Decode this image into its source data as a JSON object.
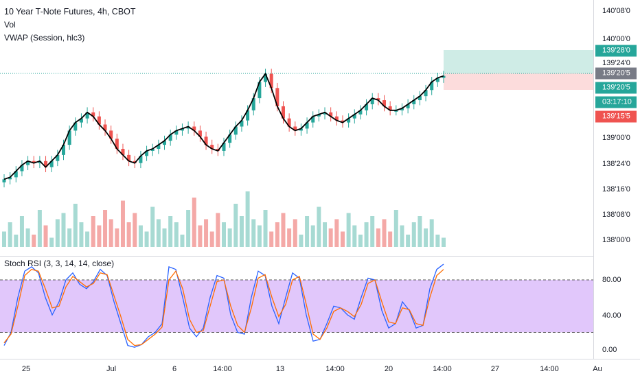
{
  "legend": {
    "title": "10 Year T-Note Futures, 4h, CBOT",
    "vol": "Vol",
    "vwap": "VWAP (Session, hlc3)",
    "stoch": "Stoch RSI (3, 3, 14, 14, close)"
  },
  "price_axis": {
    "ticks": [
      "140'08'0",
      "140'00'0",
      "139'24'0",
      "139'00'0",
      "138'24'0",
      "138'16'0",
      "138'08'0",
      "138'00'0"
    ],
    "badges": {
      "target": "139'28'0",
      "current": "139'20'5",
      "entry": "139'20'5",
      "countdown": "03:17:10",
      "stop": "139'15'5"
    }
  },
  "rsi_axis": {
    "ticks": [
      "80.00",
      "40.00",
      "0.00"
    ]
  },
  "time_axis": {
    "ticks": [
      "25",
      "Jul",
      "6",
      "14:00",
      "13",
      "14:00",
      "20",
      "14:00",
      "27",
      "14:00",
      "Au"
    ]
  },
  "colors": {
    "up": "#26a69a",
    "down": "#ef5350",
    "vwap": "#000000",
    "k_line": "#2962ff",
    "d_line": "#ff6d00",
    "rsi_band": "#e1c7fb",
    "target_zone": "#cfece6",
    "stop_zone": "#fcdcdc",
    "current_badge": "#787b86",
    "countdown_badge": "#26a69a"
  },
  "chart_data": [
    {
      "type": "candlestick",
      "title": "10 Year T-Note Futures, 4h, CBOT",
      "close": [
        138.62,
        138.64,
        138.7,
        138.76,
        138.8,
        138.78,
        138.8,
        138.74,
        138.8,
        138.86,
        138.96,
        139.1,
        139.18,
        139.22,
        139.28,
        139.24,
        139.16,
        139.1,
        139.02,
        138.92,
        138.86,
        138.8,
        138.78,
        138.85,
        138.9,
        138.92,
        138.96,
        139.0,
        139.06,
        139.1,
        139.12,
        139.14,
        139.1,
        139.04,
        138.96,
        138.92,
        138.9,
        138.98,
        139.06,
        139.14,
        139.2,
        139.3,
        139.42,
        139.58,
        139.66,
        139.52,
        139.34,
        139.22,
        139.14,
        139.1,
        139.12,
        139.18,
        139.24,
        139.26,
        139.28,
        139.24,
        139.2,
        139.18,
        139.22,
        139.26,
        139.3,
        139.36,
        139.42,
        139.4,
        139.34,
        139.3,
        139.3,
        139.32,
        139.36,
        139.4,
        139.44,
        139.5,
        139.58,
        139.62,
        139.64
      ],
      "ylim": [
        137.9,
        140.35
      ]
    },
    {
      "type": "bar",
      "title": "Vol",
      "values": [
        5,
        8,
        4,
        10,
        6,
        4,
        12,
        7,
        3,
        9,
        11,
        6,
        14,
        8,
        5,
        10,
        7,
        12,
        9,
        6,
        15,
        8,
        11,
        7,
        5,
        13,
        9,
        6,
        10,
        8,
        4,
        12,
        16,
        7,
        9,
        5,
        11,
        8,
        6,
        14,
        10,
        18,
        9,
        7,
        12,
        5,
        8,
        11,
        6,
        9,
        4,
        10,
        7,
        13,
        8,
        6,
        9,
        5,
        11,
        7,
        4,
        8,
        10,
        6,
        9,
        5,
        12,
        7,
        4,
        8,
        10,
        6,
        9,
        4,
        3
      ],
      "ylim": [
        0,
        20
      ]
    },
    {
      "type": "line",
      "title": "Stoch RSI (3, 3, 14, 14, close)",
      "series": [
        {
          "name": "K",
          "values": [
            5,
            20,
            60,
            90,
            95,
            88,
            60,
            40,
            55,
            80,
            88,
            75,
            70,
            78,
            92,
            85,
            55,
            30,
            5,
            3,
            6,
            15,
            20,
            30,
            95,
            92,
            60,
            25,
            15,
            25,
            60,
            85,
            82,
            40,
            20,
            18,
            60,
            90,
            85,
            50,
            30,
            60,
            88,
            82,
            40,
            10,
            12,
            30,
            50,
            48,
            40,
            35,
            60,
            82,
            80,
            45,
            25,
            30,
            55,
            45,
            25,
            28,
            70,
            92,
            98
          ]
        },
        {
          "name": "D",
          "values": [
            8,
            18,
            50,
            85,
            92,
            90,
            70,
            48,
            50,
            72,
            84,
            78,
            72,
            76,
            88,
            86,
            62,
            38,
            12,
            5,
            6,
            12,
            18,
            26,
            80,
            90,
            70,
            35,
            20,
            22,
            50,
            78,
            80,
            50,
            28,
            20,
            48,
            82,
            86,
            60,
            38,
            52,
            80,
            84,
            52,
            18,
            12,
            25,
            44,
            48,
            44,
            38,
            52,
            76,
            80,
            55,
            32,
            30,
            48,
            46,
            30,
            28,
            60,
            85,
            92
          ]
        }
      ],
      "ylim": [
        -5,
        105
      ]
    }
  ]
}
